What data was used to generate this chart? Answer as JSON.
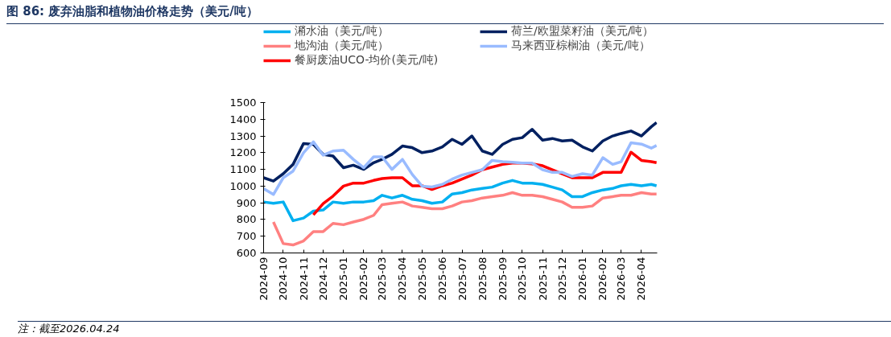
{
  "chart_data": {
    "type": "line",
    "title": "图 86:  废弃油脂和植物油价格走势（美元/吨）",
    "annotations": [
      "注：截至2026.04.24"
    ],
    "x": [
      "2024-09-01",
      "2024-09-16",
      "2024-10-01",
      "2024-10-16",
      "2024-11-01",
      "2024-11-16",
      "2024-12-01",
      "2024-12-16",
      "2025-01-01",
      "2025-01-16",
      "2025-02-01",
      "2025-02-16",
      "2025-03-01",
      "2025-03-16",
      "2025-04-01",
      "2025-04-16",
      "2025-05-01",
      "2025-05-16",
      "2025-06-01",
      "2025-06-16",
      "2025-07-01",
      "2025-07-16",
      "2025-08-01",
      "2025-08-16",
      "2025-09-01",
      "2025-09-16",
      "2025-10-01",
      "2025-10-16",
      "2025-11-01",
      "2025-11-16",
      "2025-12-01",
      "2025-12-16",
      "2026-01-01",
      "2026-01-16",
      "2026-02-01",
      "2026-02-16",
      "2026-03-01",
      "2026-03-16",
      "2026-04-01",
      "2026-04-16",
      "2026-04-24"
    ],
    "series": [
      {
        "name": "潲水油（美元/吨）",
        "color": "#00b0f0",
        "values": [
          905,
          897,
          905,
          793,
          809,
          850,
          857,
          905,
          897,
          905,
          905,
          913,
          945,
          929,
          945,
          921,
          913,
          897,
          905,
          953,
          961,
          977,
          986,
          994,
          1018,
          1034,
          1018,
          1018,
          1010,
          994,
          977,
          937,
          937,
          961,
          977,
          986,
          1002,
          1010,
          1002,
          1010,
          1002
        ]
      },
      {
        "name": "地沟油（美元/吨）",
        "color": "#ff8080",
        "values": [
          null,
          785,
          656,
          648,
          672,
          728,
          728,
          777,
          769,
          785,
          801,
          825,
          889,
          897,
          905,
          881,
          873,
          865,
          865,
          881,
          905,
          913,
          929,
          937,
          945,
          961,
          945,
          945,
          937,
          921,
          905,
          873,
          873,
          881,
          929,
          937,
          945,
          945,
          961,
          953,
          953
        ]
      },
      {
        "name": "餐厨废油UCO-均价(美元/吨)",
        "color": "#ff0000",
        "values": [
          null,
          null,
          null,
          null,
          null,
          828,
          895,
          940,
          1000,
          1018,
          1018,
          1034,
          1045,
          1050,
          1050,
          1002,
          1002,
          980,
          1002,
          1018,
          1042,
          1066,
          1098,
          1114,
          1130,
          1138,
          1138,
          1133,
          1122,
          1098,
          1074,
          1050,
          1050,
          1050,
          1082,
          1082,
          1082,
          1203,
          1154,
          1146,
          1140
        ]
      },
      {
        "name": "荷兰/欧盟菜籽油（美元/吨）",
        "color": "#002060",
        "values": [
          1050,
          1030,
          1074,
          1130,
          1255,
          1250,
          1190,
          1180,
          1110,
          1125,
          1100,
          1140,
          1160,
          1190,
          1240,
          1230,
          1200,
          1210,
          1235,
          1280,
          1250,
          1300,
          1210,
          1190,
          1250,
          1280,
          1290,
          1340,
          1275,
          1285,
          1270,
          1275,
          1235,
          1210,
          1270,
          1300,
          1315,
          1330,
          1300,
          1355,
          1380
        ]
      },
      {
        "name": "马来西亚棕榈油（美元/吨）",
        "color": "#99bbff",
        "values": [
          985,
          950,
          1050,
          1090,
          1200,
          1265,
          1185,
          1210,
          1215,
          1160,
          1110,
          1175,
          1175,
          1100,
          1160,
          1070,
          1000,
          995,
          1010,
          1042,
          1066,
          1082,
          1098,
          1154,
          1146,
          1143,
          1138,
          1138,
          1098,
          1082,
          1082,
          1058,
          1074,
          1066,
          1170,
          1130,
          1146,
          1259,
          1251,
          1227,
          1243
        ]
      }
    ],
    "xlim": [
      "2024-09-01",
      "2026-04-25"
    ],
    "xticks": [
      "2024-09",
      "2024-10",
      "2024-11",
      "2024-12",
      "2025-01",
      "2025-02",
      "2025-03",
      "2025-04",
      "2025-05",
      "2025-06",
      "2025-07",
      "2025-08",
      "2025-09",
      "2025-10",
      "2025-11",
      "2025-12",
      "2026-01",
      "2026-02",
      "2026-03",
      "2026-04"
    ],
    "ylim": [
      600,
      1500
    ],
    "yticks": [
      600,
      700,
      800,
      900,
      1000,
      1100,
      1200,
      1300,
      1400,
      1500
    ],
    "grid": false,
    "legend": "top",
    "line_style": "solid"
  }
}
